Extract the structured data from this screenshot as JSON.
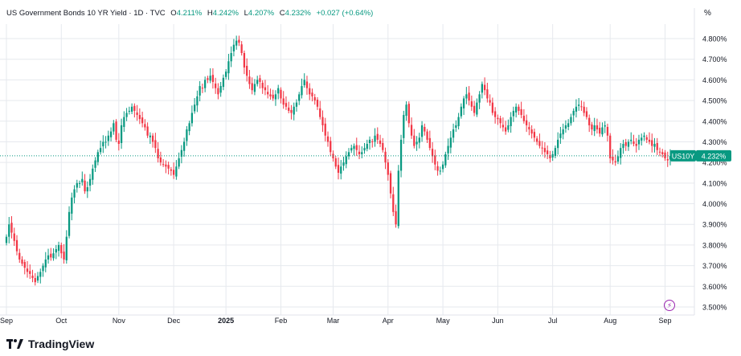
{
  "header": {
    "symbol": "US Government Bonds 10 YR Yield · 1D · TVC",
    "open_label": "O",
    "open": "4.211%",
    "high_label": "H",
    "high": "4.242%",
    "low_label": "L",
    "low": "4.207%",
    "close_label": "C",
    "close": "4.232%",
    "change": "+0.027 (+0.64%)"
  },
  "unit": "%",
  "brand": "TradingView",
  "colors": {
    "up": "#089981",
    "down": "#f23645",
    "badge": "#089981",
    "grid": "#e6e9ee",
    "flash": "#9c27b0"
  },
  "chart_data": {
    "type": "candlestick",
    "title": "US Government Bonds 10 YR Yield · 1D · TVC",
    "ylim": [
      3.48,
      4.87
    ],
    "y_ticks": [
      "4.800%",
      "4.700%",
      "4.600%",
      "4.500%",
      "4.400%",
      "4.300%",
      "4.200%",
      "4.100%",
      "4.000%",
      "3.900%",
      "3.800%",
      "3.700%",
      "3.600%",
      "3.500%"
    ],
    "x_ticks": [
      {
        "label": "Sep",
        "i": 0,
        "bold": false
      },
      {
        "label": "Oct",
        "i": 21,
        "bold": false
      },
      {
        "label": "Nov",
        "i": 43,
        "bold": false
      },
      {
        "label": "Dec",
        "i": 64,
        "bold": false
      },
      {
        "label": "2025",
        "i": 84,
        "bold": true
      },
      {
        "label": "Feb",
        "i": 105,
        "bold": false
      },
      {
        "label": "Mar",
        "i": 125,
        "bold": false
      },
      {
        "label": "Apr",
        "i": 146,
        "bold": false
      },
      {
        "label": "May",
        "i": 167,
        "bold": false
      },
      {
        "label": "Jun",
        "i": 188,
        "bold": false
      },
      {
        "label": "Jul",
        "i": 209,
        "bold": false
      },
      {
        "label": "Aug",
        "i": 231,
        "bold": false
      },
      {
        "label": "Sep",
        "i": 252,
        "bold": false
      }
    ],
    "last_value": 4.232,
    "last_label": "4.232%",
    "badge_symbol": "US10Y",
    "closes": [
      3.84,
      3.9,
      3.86,
      3.82,
      3.77,
      3.73,
      3.71,
      3.69,
      3.67,
      3.66,
      3.64,
      3.62,
      3.65,
      3.67,
      3.7,
      3.73,
      3.75,
      3.74,
      3.76,
      3.78,
      3.8,
      3.76,
      3.73,
      3.84,
      3.96,
      4.03,
      4.07,
      4.1,
      4.1,
      4.12,
      4.06,
      4.08,
      4.12,
      4.17,
      4.21,
      4.25,
      4.27,
      4.3,
      4.3,
      4.33,
      4.35,
      4.39,
      4.31,
      4.29,
      4.38,
      4.42,
      4.44,
      4.45,
      4.47,
      4.45,
      4.43,
      4.41,
      4.39,
      4.37,
      4.33,
      4.33,
      4.3,
      4.27,
      4.22,
      4.2,
      4.19,
      4.18,
      4.17,
      4.16,
      4.14,
      4.18,
      4.22,
      4.26,
      4.3,
      4.36,
      4.39,
      4.44,
      4.48,
      4.52,
      4.57,
      4.56,
      4.6,
      4.6,
      4.62,
      4.59,
      4.56,
      4.53,
      4.57,
      4.61,
      4.64,
      4.69,
      4.73,
      4.77,
      4.79,
      4.78,
      4.73,
      4.66,
      4.62,
      4.58,
      4.55,
      4.58,
      4.6,
      4.59,
      4.56,
      4.55,
      4.53,
      4.52,
      4.51,
      4.53,
      4.56,
      4.51,
      4.48,
      4.47,
      4.45,
      4.44,
      4.47,
      4.49,
      4.53,
      4.57,
      4.6,
      4.56,
      4.53,
      4.52,
      4.5,
      4.47,
      4.42,
      4.38,
      4.33,
      4.3,
      4.25,
      4.22,
      4.18,
      4.15,
      4.18,
      4.2,
      4.23,
      4.25,
      4.27,
      4.28,
      4.26,
      4.24,
      4.25,
      4.27,
      4.29,
      4.31,
      4.3,
      4.33,
      4.31,
      4.29,
      4.26,
      4.2,
      4.14,
      4.05,
      3.96,
      3.9,
      4.16,
      4.31,
      4.43,
      4.48,
      4.39,
      4.33,
      4.28,
      4.3,
      4.32,
      4.38,
      4.35,
      4.31,
      4.27,
      4.23,
      4.19,
      4.16,
      4.16,
      4.19,
      4.24,
      4.28,
      4.32,
      4.36,
      4.38,
      4.42,
      4.47,
      4.51,
      4.53,
      4.5,
      4.47,
      4.44,
      4.49,
      4.53,
      4.58,
      4.55,
      4.51,
      4.49,
      4.44,
      4.42,
      4.41,
      4.39,
      4.37,
      4.35,
      4.38,
      4.42,
      4.45,
      4.47,
      4.45,
      4.43,
      4.4,
      4.38,
      4.36,
      4.34,
      4.32,
      4.3,
      4.28,
      4.27,
      4.25,
      4.24,
      4.22,
      4.24,
      4.27,
      4.31,
      4.34,
      4.36,
      4.38,
      4.39,
      4.42,
      4.45,
      4.47,
      4.48,
      4.47,
      4.44,
      4.42,
      4.38,
      4.36,
      4.38,
      4.36,
      4.34,
      4.37,
      4.38,
      4.33,
      4.22,
      4.21,
      4.2,
      4.23,
      4.27,
      4.29,
      4.28,
      4.3,
      4.31,
      4.29,
      4.28,
      4.31,
      4.32,
      4.33,
      4.31,
      4.3,
      4.28,
      4.29,
      4.26,
      4.25,
      4.24,
      4.22,
      4.21,
      4.232
    ]
  }
}
